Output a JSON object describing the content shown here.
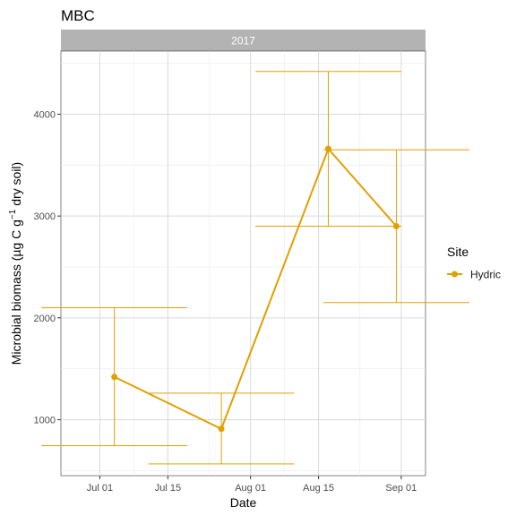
{
  "chart_data": {
    "type": "line",
    "title": "MBC",
    "facet_label": "2017",
    "xlabel": "Date",
    "ylabel_main": "Microbial biomass (µg C g",
    "ylabel_sup": "−1",
    "ylabel_tail": " dry soil)",
    "x_ticks": [
      {
        "date": "2017-07-01",
        "label": "Jul 01"
      },
      {
        "date": "2017-07-15",
        "label": "Jul 15"
      },
      {
        "date": "2017-08-01",
        "label": "Aug 01"
      },
      {
        "date": "2017-08-15",
        "label": "Aug 15"
      },
      {
        "date": "2017-09-01",
        "label": "Sep 01"
      }
    ],
    "y_ticks": [
      1000,
      2000,
      3000,
      4000
    ],
    "xlim": [
      "2017-06-23",
      "2017-09-06"
    ],
    "ylim": [
      450,
      4620
    ],
    "grid": true,
    "legend": {
      "title": "Site",
      "position": "right"
    },
    "series": [
      {
        "name": "Hydric",
        "color": "#E0A000",
        "points": [
          {
            "x": "2017-07-04",
            "y": 1420,
            "ymin": 745,
            "ymax": 2100
          },
          {
            "x": "2017-07-26",
            "y": 910,
            "ymin": 565,
            "ymax": 1260
          },
          {
            "x": "2017-08-17",
            "y": 3660,
            "ymin": 2900,
            "ymax": 4420
          },
          {
            "x": "2017-08-31",
            "y": 2900,
            "ymin": 2150,
            "ymax": 3650
          }
        ]
      }
    ]
  }
}
